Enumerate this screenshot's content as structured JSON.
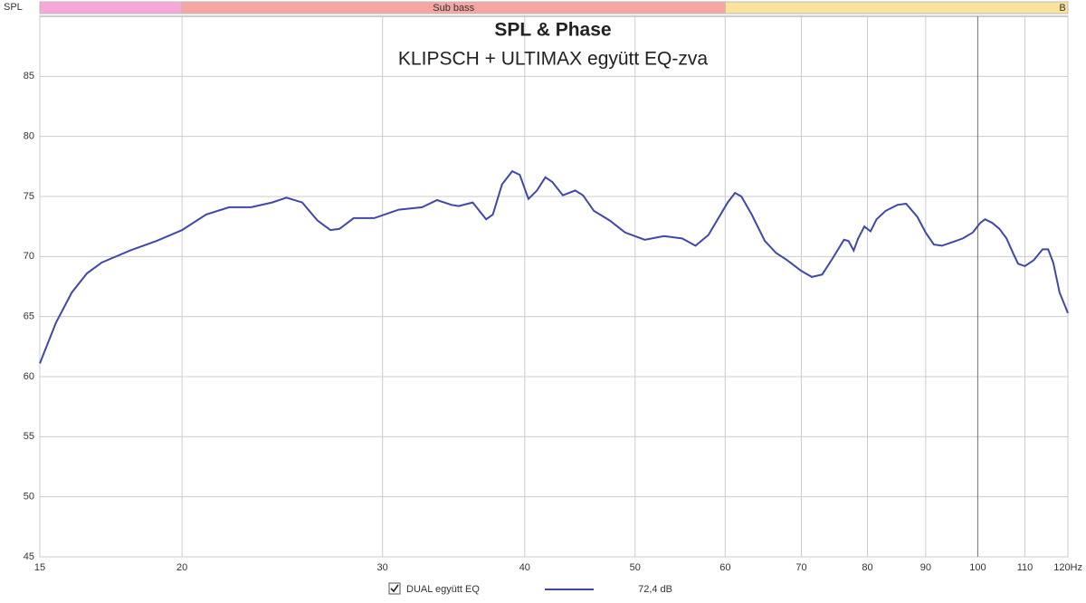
{
  "chart_data": {
    "type": "line",
    "title": "SPL & Phase",
    "subtitle": "KLIPSCH + ULTIMAX együtt EQ-zva",
    "y_axis_label": "SPL",
    "bands": [
      {
        "start": 15,
        "color": "#f7a8d8"
      },
      {
        "name": "Sub bass",
        "start": 20,
        "color": "#f6a6a2"
      },
      {
        "name": "B",
        "start": 60,
        "color": "#f8e29c"
      }
    ],
    "cursor_x": 100,
    "log_x": true,
    "xlim": [
      15,
      120
    ],
    "ylim": [
      45,
      90
    ],
    "xticks": [
      15,
      20,
      30,
      40,
      50,
      60,
      70,
      80,
      90,
      100,
      110,
      {
        "value": 120,
        "label": "120Hz"
      }
    ],
    "yticks": [
      45,
      50,
      55,
      60,
      65,
      70,
      75,
      80,
      85
    ],
    "grid": true,
    "legend_value": "72,4 dB",
    "x": [
      15,
      15.5,
      16,
      16.5,
      17,
      18,
      19,
      20,
      21,
      22,
      23,
      24,
      24.7,
      25.5,
      26.3,
      27,
      27.5,
      28.3,
      29.5,
      31,
      32.5,
      33.5,
      34.5,
      35,
      36,
      37,
      37.5,
      38.2,
      39,
      39.6,
      40.3,
      41,
      41.7,
      42.3,
      43.2,
      44.3,
      45,
      46,
      47.5,
      49,
      51,
      53,
      55,
      56.5,
      58,
      60.3,
      61.2,
      62,
      63.3,
      65,
      66.5,
      68,
      70,
      71.5,
      73,
      74.5,
      76.3,
      77,
      77.8,
      78.5,
      79.5,
      80.5,
      81.5,
      83,
      85,
      86.5,
      88.5,
      90,
      91.5,
      93,
      95,
      97,
      99,
      100.5,
      101.5,
      103,
      104.5,
      106,
      107.5,
      108.5,
      110,
      112,
      114,
      115.3,
      116.5,
      118,
      120
    ],
    "series": [
      {
        "name": "DUAL együtt EQ",
        "color": "#3f48a8",
        "values": [
          61.1,
          64.5,
          67,
          68.6,
          69.5,
          70.5,
          71.3,
          72.2,
          73.5,
          74.1,
          74.1,
          74.5,
          74.9,
          74.5,
          73,
          72.2,
          72.3,
          73.2,
          73.2,
          73.9,
          74.1,
          74.7,
          74.3,
          74.2,
          74.5,
          73.1,
          73.5,
          76,
          77.1,
          76.8,
          74.8,
          75.5,
          76.6,
          76.2,
          75.1,
          75.5,
          75.1,
          73.8,
          73,
          72,
          71.4,
          71.7,
          71.5,
          70.9,
          71.8,
          74.5,
          75.3,
          75,
          73.5,
          71.3,
          70.3,
          69.7,
          68.8,
          68.3,
          68.5,
          69.8,
          71.4,
          71.3,
          70.5,
          71.5,
          72.5,
          72.1,
          73.1,
          73.8,
          74.3,
          74.4,
          73.3,
          72,
          71,
          70.9,
          71.2,
          71.5,
          72,
          72.8,
          73.1,
          72.8,
          72.3,
          71.5,
          70.2,
          69.4,
          69.2,
          69.7,
          70.6,
          70.6,
          69.5,
          67,
          65.3
        ]
      }
    ]
  }
}
